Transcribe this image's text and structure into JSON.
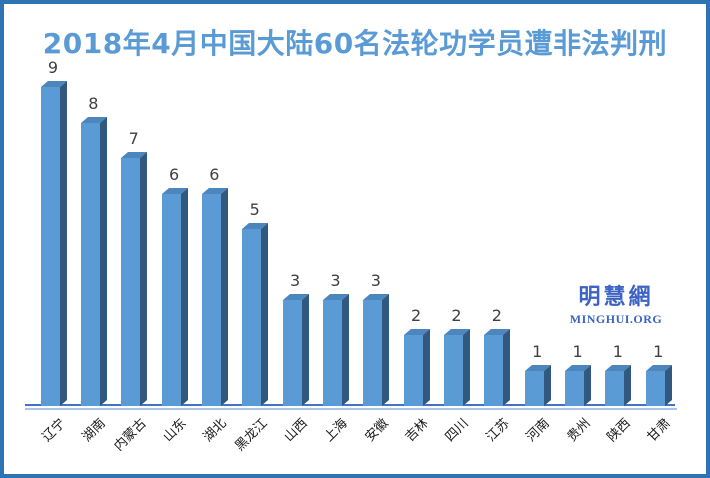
{
  "page": {
    "background": "#FFFFFF",
    "border_color": "#2E74B5"
  },
  "title": {
    "text": "2018年4月中国大陆60名法轮功学员遭非法判刑",
    "color": "#5B9BD5"
  },
  "watermark": {
    "cjk": "明慧網",
    "latin": "MINGHUI.ORG",
    "color": "#3C63C4"
  },
  "chart_data": {
    "type": "bar",
    "style": "3d-column",
    "title": "2018年4月中国大陆60名法轮功学员遭非法判刑",
    "categories": [
      "辽宁",
      "湖南",
      "内蒙古",
      "山东",
      "湖北",
      "黑龙江",
      "山西",
      "上海",
      "安徽",
      "吉林",
      "四川",
      "江苏",
      "河南",
      "贵州",
      "陕西",
      "甘肃"
    ],
    "values": [
      9,
      8,
      7,
      6,
      6,
      5,
      3,
      3,
      3,
      2,
      2,
      2,
      1,
      1,
      1,
      1
    ],
    "xlabel": "",
    "ylabel": "",
    "ylim": [
      0,
      9
    ],
    "value_labels_shown": true,
    "y_axis_visible": false,
    "gridlines": false,
    "legend_position": "none",
    "category_label_rotation_deg": -45,
    "colors": {
      "bar_face": "#5B9BD5",
      "bar_top": "#4D86BC",
      "bar_side": "#31597F",
      "axis_line": "#4472C4",
      "axis_line_light": "#A9C4E8",
      "value_label": "#404040",
      "category_label": "#1A1A1A"
    }
  }
}
